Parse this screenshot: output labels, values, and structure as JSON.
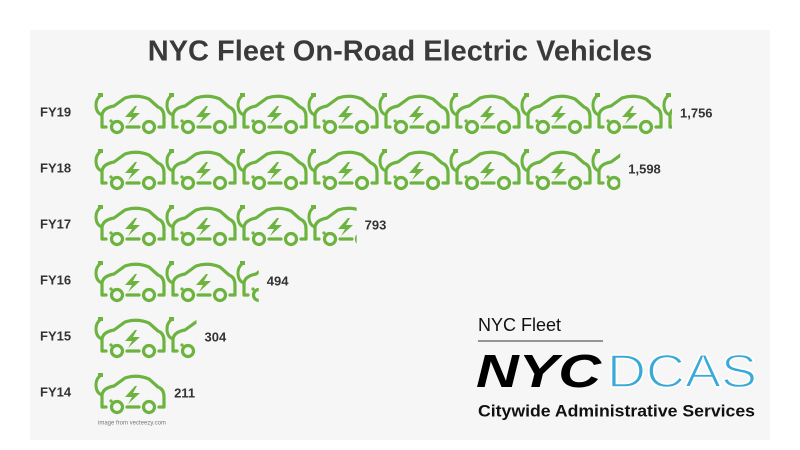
{
  "chart_data": {
    "type": "pictogram",
    "title": "NYC Fleet On-Road Electric Vehicles",
    "categories": [
      "FY19",
      "FY18",
      "FY17",
      "FY16",
      "FY15",
      "FY14"
    ],
    "values": [
      1756,
      1598,
      793,
      494,
      304,
      211
    ],
    "value_labels": [
      "1,756",
      "1,598",
      "793",
      "494",
      "304",
      "211"
    ],
    "color": "#6cb33f"
  },
  "credit": "image from vecteezy.com",
  "logo": {
    "caption": "NYC Fleet",
    "mark": "NYC",
    "agency": "DCAS",
    "subtitle": "Citywide Administrative Services"
  }
}
